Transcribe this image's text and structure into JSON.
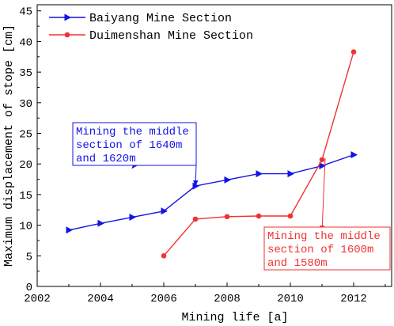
{
  "chart_data": {
    "type": "line",
    "xlabel": "Mining life [a]",
    "ylabel": "Maximum displacement of stope [cm]",
    "xlim": [
      2002,
      2013.2
    ],
    "ylim": [
      0,
      46
    ],
    "xticks": [
      2002,
      2004,
      2006,
      2008,
      2010,
      2012
    ],
    "yticks": [
      0,
      5,
      10,
      15,
      20,
      25,
      30,
      35,
      40,
      45
    ],
    "legend_position": "top-left",
    "grid": false,
    "series": [
      {
        "name": "Baiyang Mine Section",
        "color": "#1414e6",
        "marker": "triangle-right",
        "x": [
          2003,
          2004,
          2005,
          2006,
          2007,
          2008,
          2009,
          2010,
          2011,
          2012
        ],
        "values": [
          9.2,
          10.3,
          11.3,
          12.3,
          16.4,
          17.4,
          18.4,
          18.4,
          19.7,
          21.5
        ]
      },
      {
        "name": "Duimenshan Mine Section",
        "color": "#f03232",
        "marker": "circle",
        "x": [
          2006,
          2007,
          2008,
          2009,
          2010,
          2011,
          2012
        ],
        "values": [
          5.0,
          11.0,
          11.4,
          11.5,
          11.5,
          20.7,
          38.3
        ]
      }
    ],
    "annotations": [
      {
        "lines": [
          "Mining the middle",
          "section of 1640m",
          "and 1620m"
        ],
        "color": "#1414e6",
        "arrows_to": [
          [
            2005.0,
            19.3
          ],
          [
            2007.0,
            16.4
          ]
        ]
      },
      {
        "lines": [
          "Mining the middle",
          "section of 1600m",
          "and 1580m"
        ],
        "color": "#f03232",
        "arrows_to": [
          [
            2011.0,
            9.0
          ]
        ]
      }
    ]
  }
}
